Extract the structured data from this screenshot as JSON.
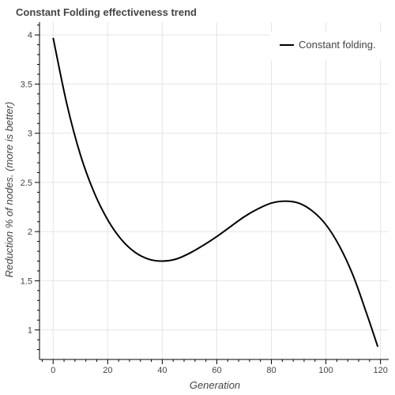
{
  "chart_data": {
    "type": "line",
    "title": "Constant Folding effectiveness trend",
    "xlabel": "Generation",
    "ylabel": "Reduction % of nodes. (more is better)",
    "xlim": [
      -5,
      123
    ],
    "ylim": [
      0.7,
      4.13
    ],
    "x_ticks": [
      0,
      20,
      40,
      60,
      80,
      100,
      120
    ],
    "y_ticks": [
      1,
      1.5,
      2,
      2.5,
      3,
      3.5,
      4
    ],
    "x_tick_labels": [
      "0",
      "20",
      "40",
      "60",
      "80",
      "100",
      "120"
    ],
    "y_tick_labels": [
      "1",
      "1.5",
      "2",
      "2.5",
      "3",
      "3.5",
      "4"
    ],
    "grid": true,
    "legend_position": "top-right",
    "series": [
      {
        "name": "Constant folding.",
        "color": "#000000",
        "x": [
          0,
          5,
          10,
          15,
          20,
          25,
          30,
          35,
          40,
          45,
          50,
          55,
          60,
          65,
          70,
          75,
          80,
          85,
          90,
          95,
          100,
          105,
          110,
          115,
          119
        ],
        "y": [
          3.97,
          3.3,
          2.78,
          2.4,
          2.12,
          1.92,
          1.79,
          1.72,
          1.7,
          1.72,
          1.78,
          1.86,
          1.95,
          2.05,
          2.15,
          2.23,
          2.29,
          2.31,
          2.29,
          2.21,
          2.07,
          1.85,
          1.55,
          1.16,
          0.83
        ]
      }
    ]
  }
}
